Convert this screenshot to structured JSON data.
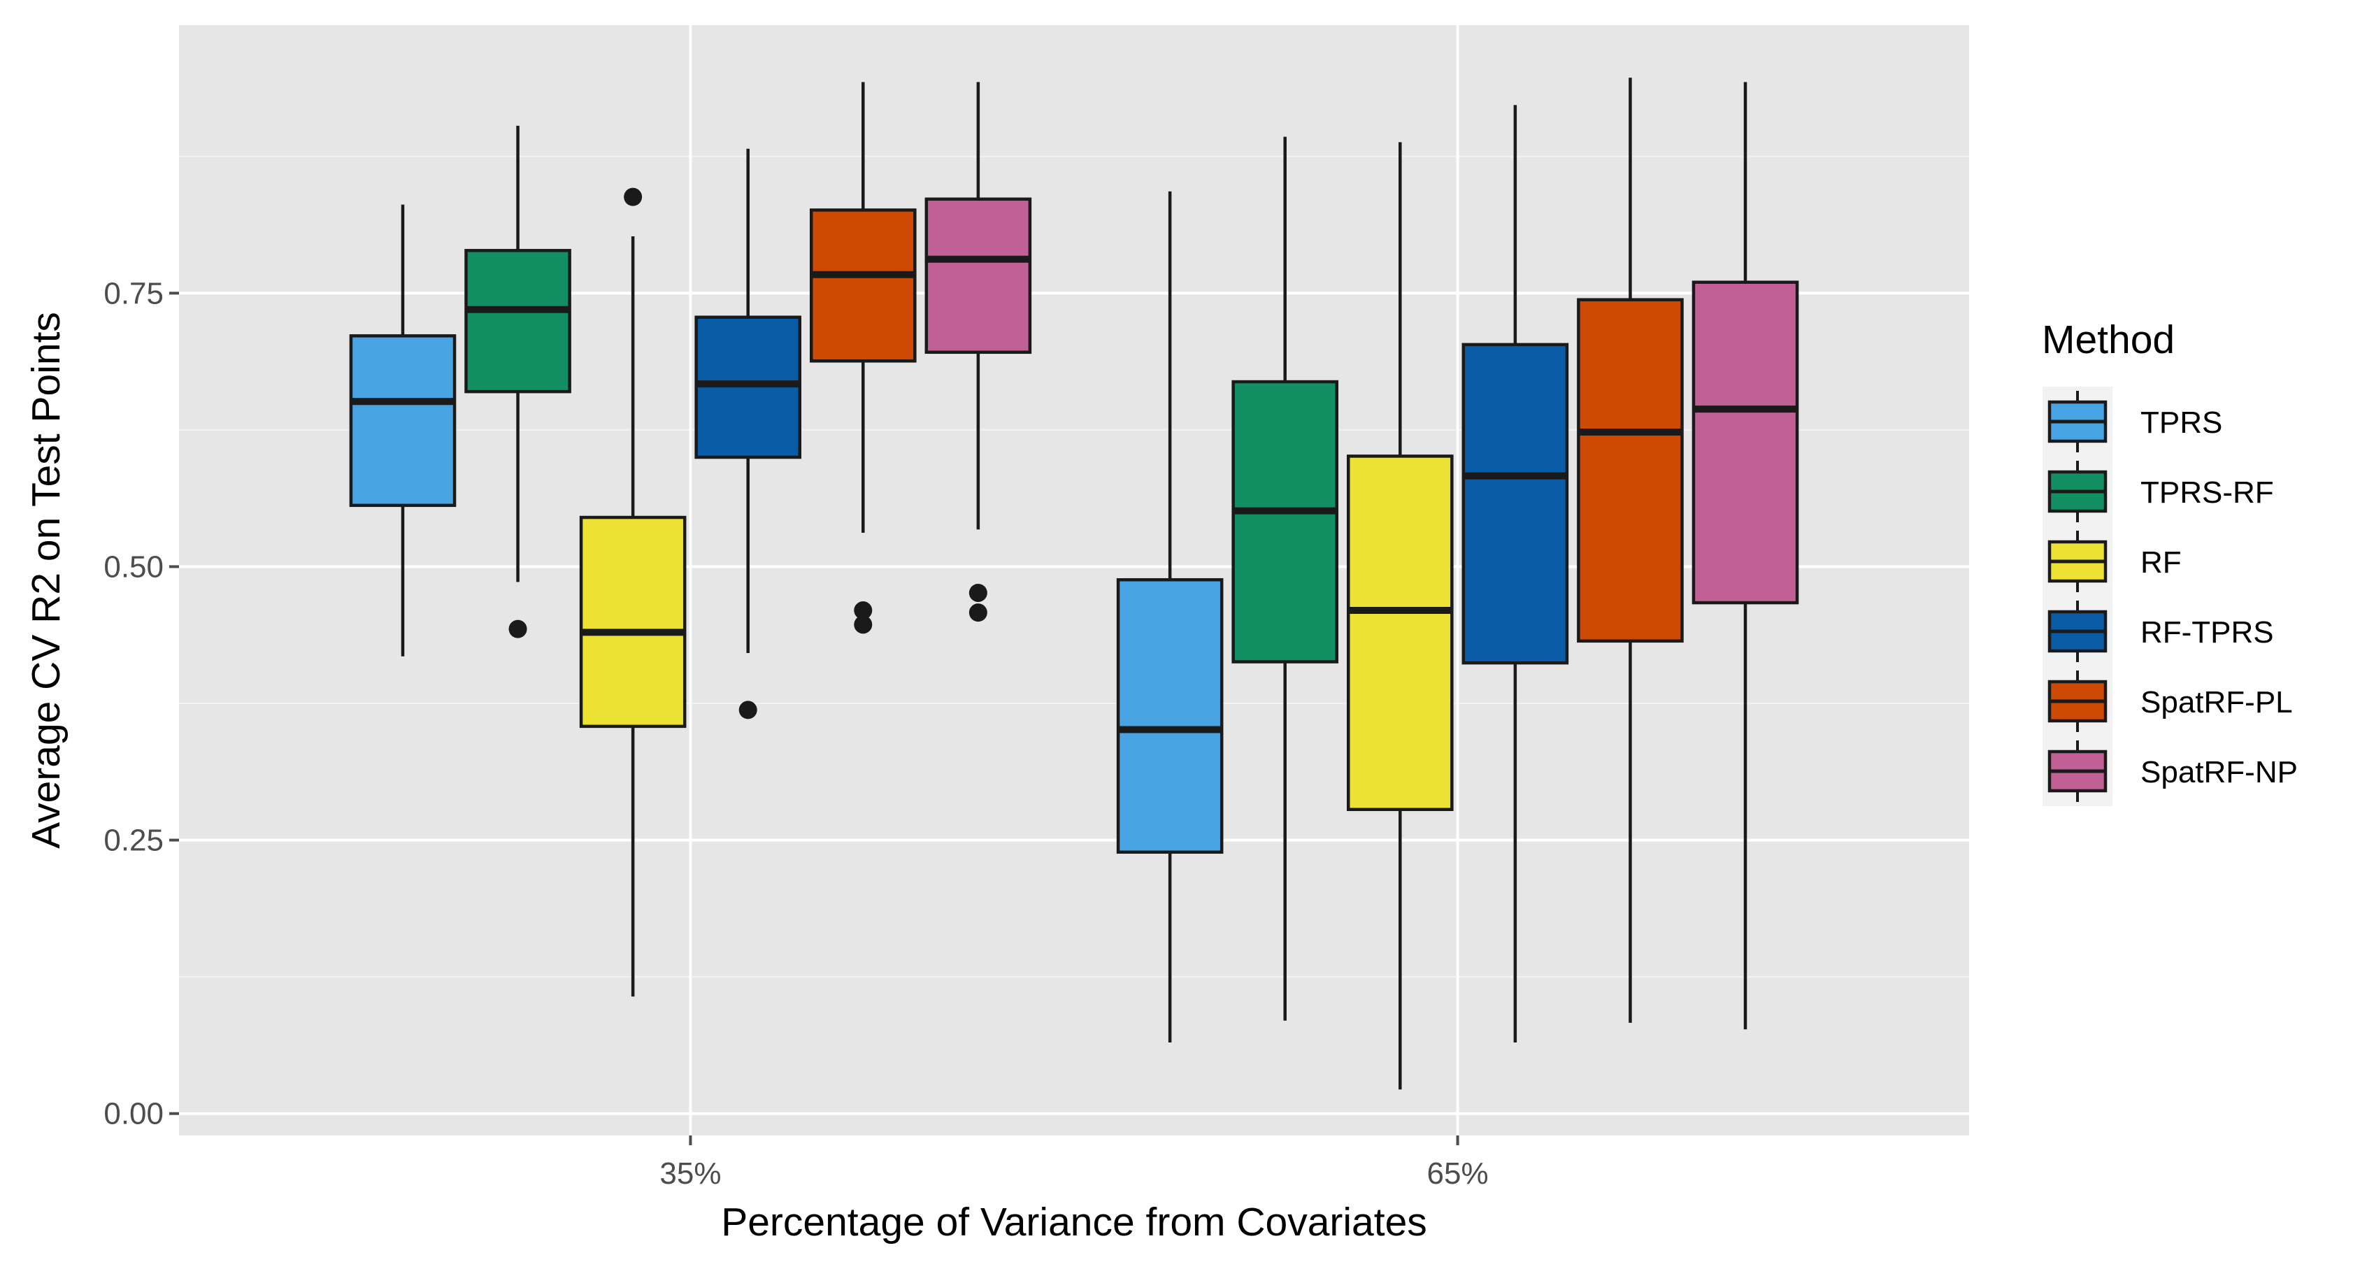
{
  "chart_data": {
    "type": "boxplot",
    "title": "",
    "xlabel": "Percentage of Variance from Covariates",
    "ylabel": "Average CV R2 on Test Points",
    "categories": [
      "35%",
      "65%"
    ],
    "ylim": [
      -0.02,
      0.995
    ],
    "y_ticks": [
      {
        "value": 0.0,
        "label": "0.00"
      },
      {
        "value": 0.25,
        "label": "0.25"
      },
      {
        "value": 0.5,
        "label": "0.50"
      },
      {
        "value": 0.75,
        "label": "0.75"
      }
    ],
    "grid": true,
    "legend": {
      "title": "Method",
      "position": "right"
    },
    "series": [
      {
        "name": "TPRS",
        "color": "#48a4e3",
        "boxes": [
          {
            "category": "35%",
            "whisker_low": 0.418,
            "q1": 0.556,
            "median": 0.651,
            "q3": 0.711,
            "whisker_high": 0.831,
            "outliers": []
          },
          {
            "category": "65%",
            "whisker_low": 0.065,
            "q1": 0.239,
            "median": 0.351,
            "q3": 0.488,
            "whisker_high": 0.843,
            "outliers": []
          }
        ]
      },
      {
        "name": "TPRS-RF",
        "color": "#139063",
        "boxes": [
          {
            "category": "35%",
            "whisker_low": 0.486,
            "q1": 0.66,
            "median": 0.735,
            "q3": 0.789,
            "whisker_high": 0.903,
            "outliers": [
              0.443
            ]
          },
          {
            "category": "65%",
            "whisker_low": 0.085,
            "q1": 0.413,
            "median": 0.551,
            "q3": 0.669,
            "whisker_high": 0.893,
            "outliers": []
          }
        ]
      },
      {
        "name": "RF",
        "color": "#ede234",
        "boxes": [
          {
            "category": "35%",
            "whisker_low": 0.107,
            "q1": 0.354,
            "median": 0.44,
            "q3": 0.545,
            "whisker_high": 0.802,
            "outliers": [
              0.838
            ]
          },
          {
            "category": "65%",
            "whisker_low": 0.022,
            "q1": 0.278,
            "median": 0.46,
            "q3": 0.601,
            "whisker_high": 0.888,
            "outliers": []
          }
        ]
      },
      {
        "name": "RF-TPRS",
        "color": "#085da6",
        "boxes": [
          {
            "category": "35%",
            "whisker_low": 0.421,
            "q1": 0.6,
            "median": 0.667,
            "q3": 0.728,
            "whisker_high": 0.882,
            "outliers": [
              0.369
            ]
          },
          {
            "category": "65%",
            "whisker_low": 0.065,
            "q1": 0.412,
            "median": 0.583,
            "q3": 0.703,
            "whisker_high": 0.922,
            "outliers": []
          }
        ]
      },
      {
        "name": "SpatRF-PL",
        "color": "#cc4a04",
        "boxes": [
          {
            "category": "35%",
            "whisker_low": 0.531,
            "q1": 0.688,
            "median": 0.767,
            "q3": 0.826,
            "whisker_high": 0.943,
            "outliers": [
              0.46,
              0.447
            ]
          },
          {
            "category": "65%",
            "whisker_low": 0.083,
            "q1": 0.432,
            "median": 0.623,
            "q3": 0.744,
            "whisker_high": 0.947,
            "outliers": []
          }
        ]
      },
      {
        "name": "SpatRF-NP",
        "color": "#c06094",
        "boxes": [
          {
            "category": "35%",
            "whisker_low": 0.534,
            "q1": 0.696,
            "median": 0.781,
            "q3": 0.836,
            "whisker_high": 0.943,
            "outliers": [
              0.476,
              0.458
            ]
          },
          {
            "category": "65%",
            "whisker_low": 0.077,
            "q1": 0.467,
            "median": 0.644,
            "q3": 0.76,
            "whisker_high": 0.943,
            "outliers": []
          }
        ]
      }
    ]
  },
  "style": {
    "panel_bg": "#e6e6e6",
    "grid_major": "#ffffff",
    "grid_minor": "#f2f2f2",
    "box_stroke": "#1a1a1a",
    "outlier_color": "#1a1a1a",
    "tick_color": "#4d4d4d",
    "legend_key_bg": "#f2f2f2"
  }
}
